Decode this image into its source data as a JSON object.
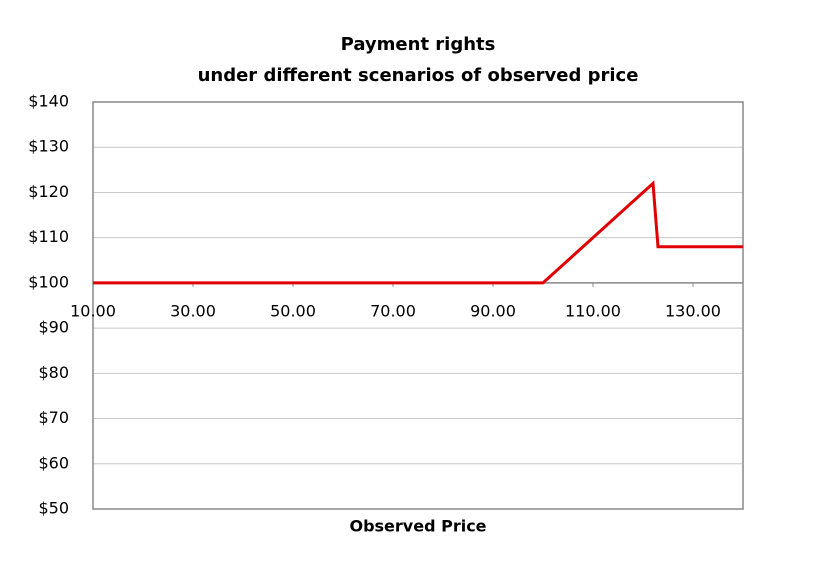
{
  "chart_data": {
    "type": "line",
    "title": "Payment rights",
    "subtitle": "under different scenarios of observed price",
    "x_label": "Observed Price",
    "x": [
      10,
      100,
      122,
      123,
      140
    ],
    "values": [
      100,
      100,
      122,
      108,
      108
    ],
    "color": "#e00000",
    "xlim": [
      10,
      140
    ],
    "xticks": [
      {
        "value": 10,
        "label": "10.00"
      },
      {
        "value": 30,
        "label": "30.00"
      },
      {
        "value": 50,
        "label": "50.00"
      },
      {
        "value": 70,
        "label": "70.00"
      },
      {
        "value": 90,
        "label": "90.00"
      },
      {
        "value": 110,
        "label": "110.00"
      },
      {
        "value": 130,
        "label": "130.00"
      }
    ],
    "ylim": [
      50,
      140
    ],
    "yticks": [
      {
        "value": 50,
        "label": "$50"
      },
      {
        "value": 60,
        "label": "$60"
      },
      {
        "value": 70,
        "label": "$70"
      },
      {
        "value": 80,
        "label": "$80"
      },
      {
        "value": 90,
        "label": "$90"
      },
      {
        "value": 100,
        "label": "$100"
      },
      {
        "value": 110,
        "label": "$110"
      },
      {
        "value": 120,
        "label": "$120"
      },
      {
        "value": 130,
        "label": "$130"
      },
      {
        "value": 140,
        "label": "$140"
      }
    ],
    "x_axis_crossing": 100,
    "grid": true
  }
}
